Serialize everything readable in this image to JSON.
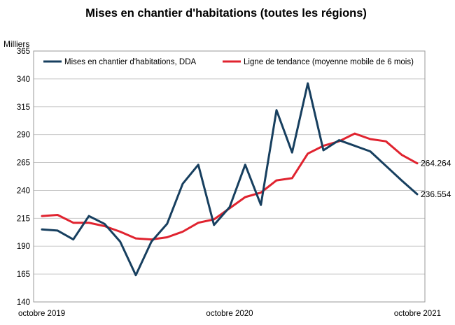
{
  "chart_data": {
    "type": "line",
    "title": "Mises en chantier d'habitations (toutes les régions)",
    "ylabel": "Milliers",
    "xlabel": "",
    "ylim": [
      140,
      365
    ],
    "yticks": [
      140,
      165,
      190,
      215,
      240,
      265,
      290,
      315,
      340,
      365
    ],
    "x_tick_labels": [
      {
        "index": 0,
        "label": "octobre 2019"
      },
      {
        "index": 12,
        "label": "octobre 2020"
      },
      {
        "index": 24,
        "label": "octobre 2021"
      }
    ],
    "categories_count": 25,
    "grid": "horizontal",
    "legend_position": "top",
    "series": [
      {
        "name": "Mises en chantier d'habitations, DDA",
        "color": "#173f5f",
        "values": [
          205,
          204,
          196,
          217,
          210,
          194,
          164,
          194,
          210,
          246,
          263,
          209,
          225,
          263,
          227,
          312,
          274,
          336,
          276,
          285,
          280,
          275,
          262,
          249,
          236.554
        ]
      },
      {
        "name": "Ligne de tendance (moyenne mobile de 6 mois)",
        "color": "#e0232f",
        "values": [
          217,
          218,
          211,
          211,
          208,
          203,
          197,
          196,
          198,
          203,
          211,
          214,
          224,
          234,
          238,
          249,
          251,
          273,
          280,
          284,
          291,
          286,
          284,
          272,
          264.264
        ]
      }
    ],
    "end_labels": [
      "236.554",
      "264.264"
    ]
  }
}
